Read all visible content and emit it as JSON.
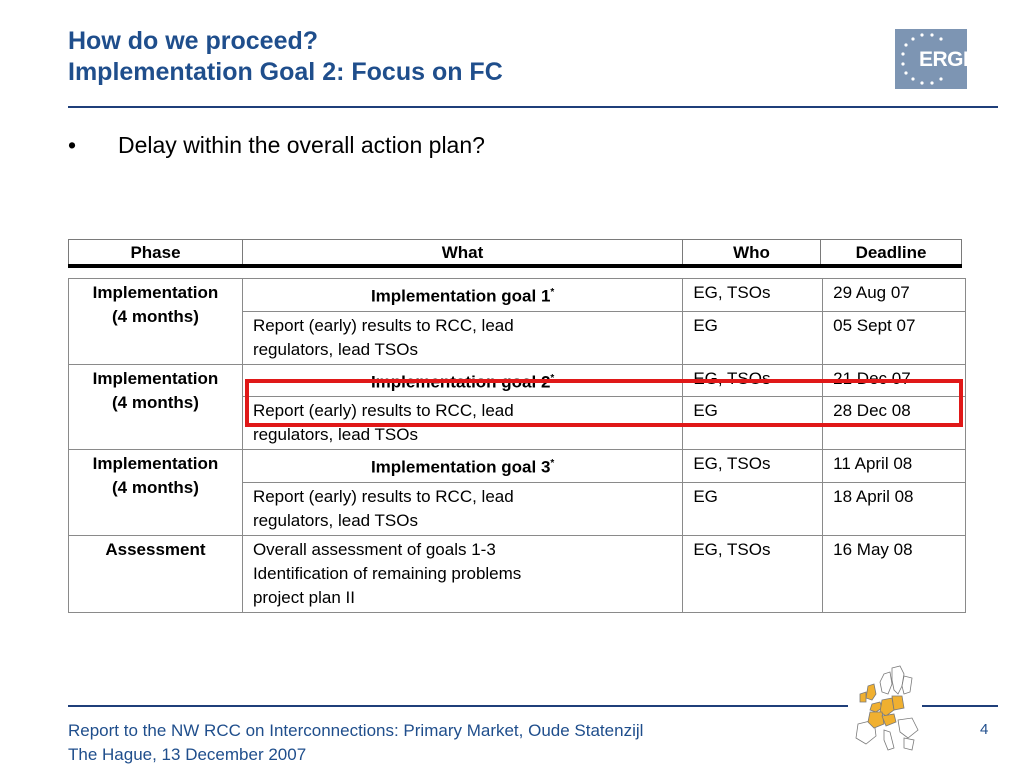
{
  "header": {
    "title_line1": "How do we proceed?",
    "title_line2": "Implementation Goal 2: Focus on FC",
    "logo_text": "ERGEG"
  },
  "bullet": {
    "symbol": "•",
    "text": "Delay within the overall action plan?"
  },
  "table": {
    "columns": [
      "Phase",
      "What",
      "Who",
      "Deadline"
    ],
    "groups": [
      {
        "phase_line1": "Implementation",
        "phase_line2": "(4 months)",
        "rows": [
          {
            "what": "Implementation goal 1",
            "star": "*",
            "who": "EG, TSOs",
            "deadline": "29 Aug 07"
          },
          {
            "what_line1": "Report (early) results to RCC, lead",
            "what_line2": "regulators, lead TSOs",
            "who": "EG",
            "deadline": "05 Sept 07"
          }
        ]
      },
      {
        "phase_line1": "Implementation",
        "phase_line2": "(4 months)",
        "rows": [
          {
            "what": "Implementation goal 2",
            "star": "*",
            "who": "EG, TSOs",
            "deadline": "21 Dec 07"
          },
          {
            "what_line1": "Report (early) results to RCC, lead",
            "what_line2": "regulators, lead TSOs",
            "who": "EG",
            "deadline": "28 Dec 08"
          }
        ]
      },
      {
        "phase_line1": "Implementation",
        "phase_line2": "(4 months)",
        "rows": [
          {
            "what": "Implementation goal 3",
            "star": "*",
            "who": "EG, TSOs",
            "deadline": "11 April 08"
          },
          {
            "what_line1": "Report (early) results to RCC, lead",
            "what_line2": "regulators, lead TSOs",
            "who": "EG",
            "deadline": "18 April 08"
          }
        ]
      }
    ],
    "assessment": {
      "phase": "Assessment",
      "what_line1": "Overall assessment of goals 1-3",
      "what_line2": "Identification of remaining problems",
      "what_line3": "project plan II",
      "who": "EG, TSOs",
      "deadline": "16 May 08"
    }
  },
  "footer": {
    "line1": "Report to the NW RCC on Interconnections: Primary Market, Oude Statenzijl",
    "line2": "The Hague, 13 December 2007",
    "page_number": "4"
  },
  "colors": {
    "title": "#1f4e8c",
    "rule": "#1f3f7a",
    "highlight": "#e01818",
    "logo_bg": "#7d95b3",
    "map_highlight": "#f0b030"
  }
}
